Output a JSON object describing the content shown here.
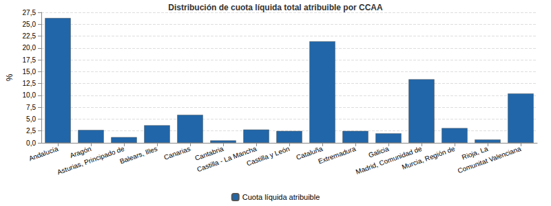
{
  "chart_data": {
    "type": "bar",
    "title": "Distribución de cuota líquida total atribuible por CCAA",
    "y_label": "%",
    "categories": [
      "Andalucía",
      "Aragón",
      "Asturias, Principado de",
      "Balears, Illes",
      "Canarias",
      "Cantabria",
      "Castilla - La Mancha",
      "Castilla y León",
      "Cataluña",
      "Extremadura",
      "Galicia",
      "Madrid, Comunidad de",
      "Murcia, Región de",
      "Rioja, La",
      "Comunitat Valenciana"
    ],
    "series": [
      {
        "name": "Cuota líquida atribuible",
        "color": "#2166a8",
        "values": [
          26.3,
          2.7,
          1.2,
          3.7,
          5.9,
          0.5,
          2.8,
          2.5,
          21.4,
          2.5,
          2.0,
          13.4,
          3.1,
          0.7,
          10.4
        ]
      }
    ],
    "ylim": [
      0,
      27.5
    ],
    "yticks": [
      {
        "value": 0,
        "label": "0,0"
      },
      {
        "value": 2.5,
        "label": "2,5"
      },
      {
        "value": 5,
        "label": "5,0"
      },
      {
        "value": 7.5,
        "label": "7,5"
      },
      {
        "value": 10,
        "label": "10,0"
      },
      {
        "value": 12.5,
        "label": "12,5"
      },
      {
        "value": 15,
        "label": "15,0"
      },
      {
        "value": 17.5,
        "label": "17,5"
      },
      {
        "value": 20,
        "label": "20,0"
      },
      {
        "value": 22.5,
        "label": "22,5"
      },
      {
        "value": 25,
        "label": "25,0"
      },
      {
        "value": 27.5,
        "label": "27,5"
      }
    ],
    "grid": true,
    "legend": "bottom"
  }
}
